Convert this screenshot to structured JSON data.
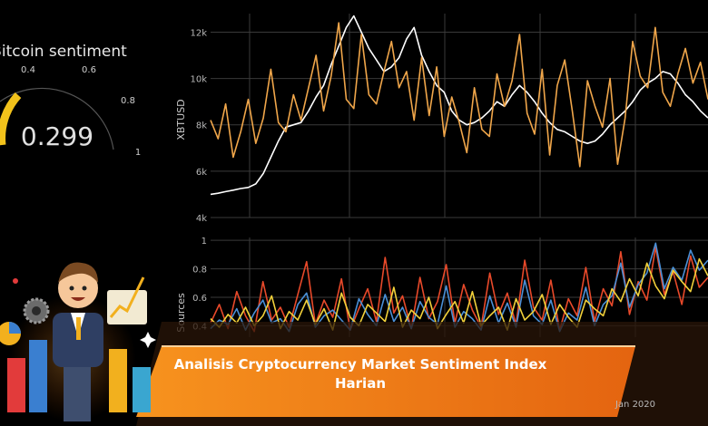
{
  "gauge": {
    "title": "Bitcoin sentiment",
    "value_text": "0.299",
    "value": 0.299,
    "tick_labels": [
      "0.4",
      "0.6",
      "0.8",
      "1"
    ],
    "color": "#f2c21b"
  },
  "banner": {
    "line1": "Analisis Cryptocurrency Market Sentiment Index",
    "line2": "Harian",
    "color": "#f07a18"
  },
  "chart_data": [
    {
      "type": "line",
      "ylabel": "XBTUSD",
      "ytick_labels": [
        "4k",
        "6k",
        "8k",
        "10k",
        "12k"
      ],
      "yticks": [
        4000,
        6000,
        8000,
        10000,
        12000
      ],
      "ylim": [
        4000,
        12800
      ],
      "grid": true,
      "series": [
        {
          "color": "#ffffff",
          "values": [
            5000,
            5050,
            5120,
            5180,
            5250,
            5300,
            5450,
            5900,
            6600,
            7300,
            7900,
            8000,
            8100,
            8600,
            9200,
            9700,
            10600,
            11400,
            12200,
            12700,
            12000,
            11300,
            10800,
            10300,
            10500,
            10900,
            11700,
            12200,
            11000,
            10300,
            9700,
            9400,
            8600,
            8200,
            8000,
            8100,
            8300,
            8600,
            9000,
            8800,
            9300,
            9700,
            9400,
            9000,
            8500,
            8100,
            7800,
            7700,
            7500,
            7300,
            7200,
            7300,
            7600,
            8000,
            8300,
            8600,
            9000,
            9500,
            9800,
            10000,
            10300,
            10200,
            9800,
            9300,
            9000,
            8600,
            8300
          ]
        },
        {
          "color": "#f0a64a",
          "values": [
            8200,
            7400,
            8900,
            6600,
            7700,
            9100,
            7200,
            8300,
            10400,
            8100,
            7700,
            9300,
            8200,
            9600,
            11000,
            8600,
            10100,
            12400,
            9100,
            8700,
            11900,
            9300,
            8900,
            10300,
            11600,
            9600,
            10300,
            8200,
            10900,
            8400,
            10500,
            7500,
            9200,
            8100,
            6800,
            9600,
            7800,
            7500,
            10200,
            8800,
            9900,
            11900,
            8500,
            7600,
            10400,
            6700,
            9700,
            10800,
            8600,
            6200,
            9900,
            8800,
            7900,
            10000,
            6300,
            8300,
            11600,
            10100,
            9600,
            12200,
            9400,
            8800,
            10200,
            11300,
            9800,
            10700,
            9100
          ]
        }
      ]
    },
    {
      "type": "line",
      "ylabel": "Sources",
      "ytick_labels": [
        "0.4",
        "0.6",
        "0.8",
        "1"
      ],
      "yticks": [
        0.4,
        0.6,
        0.8,
        1.0
      ],
      "ylim": [
        0.32,
        1.02
      ],
      "xtick_labels": [
        "Jan 2020"
      ],
      "grid": true,
      "series": [
        {
          "color": "#e8492a",
          "values": [
            0.42,
            0.55,
            0.38,
            0.64,
            0.47,
            0.36,
            0.71,
            0.44,
            0.53,
            0.39,
            0.62,
            0.85,
            0.41,
            0.58,
            0.46,
            0.73,
            0.37,
            0.52,
            0.66,
            0.43,
            0.88,
            0.49,
            0.61,
            0.38,
            0.74,
            0.45,
            0.57,
            0.83,
            0.42,
            0.69,
            0.51,
            0.39,
            0.77,
            0.48,
            0.63,
            0.41,
            0.86,
            0.53,
            0.44,
            0.72,
            0.37,
            0.59,
            0.47,
            0.81,
            0.43,
            0.66,
            0.54,
            0.92,
            0.48,
            0.71,
            0.58,
            0.95,
            0.62,
            0.78,
            0.55,
            0.89,
            0.67,
            0.74
          ]
        },
        {
          "color": "#4a8fd6",
          "values": [
            0.38,
            0.44,
            0.41,
            0.52,
            0.37,
            0.49,
            0.58,
            0.42,
            0.45,
            0.36,
            0.55,
            0.63,
            0.39,
            0.47,
            0.51,
            0.44,
            0.37,
            0.59,
            0.48,
            0.4,
            0.62,
            0.43,
            0.53,
            0.38,
            0.57,
            0.46,
            0.41,
            0.68,
            0.39,
            0.5,
            0.45,
            0.37,
            0.61,
            0.42,
            0.56,
            0.39,
            0.72,
            0.47,
            0.41,
            0.58,
            0.36,
            0.49,
            0.44,
            0.67,
            0.4,
            0.55,
            0.61,
            0.84,
            0.53,
            0.69,
            0.77,
            0.98,
            0.66,
            0.81,
            0.72,
            0.93,
            0.79,
            0.86
          ]
        },
        {
          "color": "#f2d13a",
          "values": [
            0.45,
            0.39,
            0.48,
            0.42,
            0.53,
            0.4,
            0.47,
            0.61,
            0.38,
            0.5,
            0.44,
            0.58,
            0.41,
            0.52,
            0.37,
            0.63,
            0.46,
            0.4,
            0.55,
            0.49,
            0.43,
            0.67,
            0.39,
            0.51,
            0.45,
            0.6,
            0.38,
            0.48,
            0.57,
            0.42,
            0.64,
            0.4,
            0.47,
            0.53,
            0.37,
            0.59,
            0.44,
            0.5,
            0.62,
            0.41,
            0.55,
            0.46,
            0.39,
            0.58,
            0.52,
            0.47,
            0.66,
            0.57,
            0.73,
            0.61,
            0.84,
            0.68,
            0.59,
            0.79,
            0.71,
            0.64,
            0.87,
            0.75
          ]
        }
      ]
    }
  ]
}
